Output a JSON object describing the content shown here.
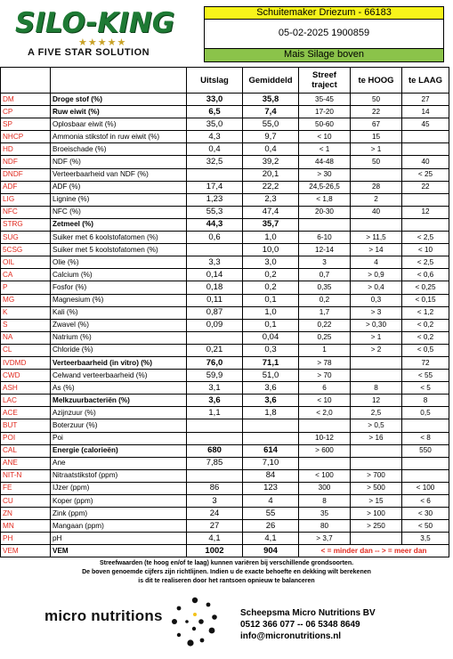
{
  "header": {
    "brand": "SILO-KING",
    "stars": "★★★★★",
    "tagline": "A FIVE STAR SOLUTION",
    "client": "Schuitemaker Driezum - 66183",
    "date_id": "05-02-2025 1900859",
    "sample_type": "Mais Silage boven"
  },
  "columns": [
    "Uitslag",
    "Gemiddeld",
    "Streef traject",
    "te HOOG",
    "te LAAG"
  ],
  "rows": [
    {
      "code": "DM",
      "desc": "Droge stof (%)",
      "bold": true,
      "uitslag": "33,0",
      "gem": "35,8",
      "streef": "35-45",
      "hoog": "50",
      "laag": "27"
    },
    {
      "code": "CP",
      "desc": "Ruw eiwit (%)",
      "bold": true,
      "uitslag": "6,5",
      "gem": "7,4",
      "streef": "17-20",
      "hoog": "22",
      "laag": "14"
    },
    {
      "code": "SP",
      "desc": "Oplosbaar eiwit (%)",
      "bold": false,
      "uitslag": "35,0",
      "gem": "55,0",
      "streef": "50-60",
      "hoog": "67",
      "laag": "45"
    },
    {
      "code": "NHCP",
      "desc": "Ammonia stikstof in ruw eiwit (%)",
      "bold": false,
      "uitslag": "4,3",
      "gem": "9,7",
      "streef": "< 10",
      "hoog": "15",
      "laag": ""
    },
    {
      "code": "HD",
      "desc": "Broeischade (%)",
      "bold": false,
      "uitslag": "0,4",
      "gem": "0,4",
      "streef": "< 1",
      "hoog": "> 1",
      "laag": ""
    },
    {
      "code": "NDF",
      "desc": "NDF (%)",
      "bold": false,
      "uitslag": "32,5",
      "gem": "39,2",
      "streef": "44-48",
      "hoog": "50",
      "laag": "40"
    },
    {
      "code": "DNDF",
      "desc": "Verteerbaarheid van NDF (%)",
      "bold": false,
      "uitslag": "",
      "gem": "20,1",
      "streef": "> 30",
      "hoog": "",
      "laag": "< 25"
    },
    {
      "code": "ADF",
      "desc": "ADF (%)",
      "bold": false,
      "uitslag": "17,4",
      "gem": "22,2",
      "streef": "24,5-26,5",
      "hoog": "28",
      "laag": "22"
    },
    {
      "code": "LIG",
      "desc": "Lignine (%)",
      "bold": false,
      "uitslag": "1,23",
      "gem": "2,3",
      "streef": "< 1,8",
      "hoog": "2",
      "laag": ""
    },
    {
      "code": "NFC",
      "desc": "NFC (%)",
      "bold": false,
      "uitslag": "55,3",
      "gem": "47,4",
      "streef": "20-30",
      "hoog": "40",
      "laag": "12"
    },
    {
      "code": "STRG",
      "desc": "Zetmeel (%)",
      "bold": true,
      "uitslag": "44,3",
      "gem": "35,7",
      "streef": "",
      "hoog": "",
      "laag": ""
    },
    {
      "code": "SUG",
      "desc": "Suiker met 6 koolstofatomen (%)",
      "bold": false,
      "uitslag": "0,6",
      "gem": "1,0",
      "streef": "6-10",
      "hoog": "> 11,5",
      "laag": "< 2,5"
    },
    {
      "code": "5CSG",
      "desc": "Suiker met 5 koolstofatomen (%)",
      "bold": false,
      "uitslag": "",
      "gem": "10,0",
      "streef": "12-14",
      "hoog": "> 14",
      "laag": "< 10"
    },
    {
      "code": "OIL",
      "desc": "Olie (%)",
      "bold": false,
      "uitslag": "3,3",
      "gem": "3,0",
      "streef": "3",
      "hoog": "4",
      "laag": "< 2,5"
    },
    {
      "code": "CA",
      "desc": "Calcium (%)",
      "bold": false,
      "uitslag": "0,14",
      "gem": "0,2",
      "streef": "0,7",
      "hoog": "> 0,9",
      "laag": "< 0,6"
    },
    {
      "code": "P",
      "desc": "Fosfor (%)",
      "bold": false,
      "uitslag": "0,18",
      "gem": "0,2",
      "streef": "0,35",
      "hoog": "> 0,4",
      "laag": "< 0,25"
    },
    {
      "code": "MG",
      "desc": "Magnesium (%)",
      "bold": false,
      "uitslag": "0,11",
      "gem": "0,1",
      "streef": "0,2",
      "hoog": "0,3",
      "laag": "< 0,15"
    },
    {
      "code": "K",
      "desc": "Kali (%)",
      "bold": false,
      "uitslag": "0,87",
      "gem": "1,0",
      "streef": "1,7",
      "hoog": "> 3",
      "laag": "< 1,2"
    },
    {
      "code": "S",
      "desc": "Zwavel (%)",
      "bold": false,
      "uitslag": "0,09",
      "gem": "0,1",
      "streef": "0,22",
      "hoog": "> 0,30",
      "laag": "< 0,2"
    },
    {
      "code": "NA",
      "desc": "Natrium (%)",
      "bold": false,
      "uitslag": "",
      "gem": "0,04",
      "streef": "0,25",
      "hoog": "> 1",
      "laag": "< 0,2"
    },
    {
      "code": "CL",
      "desc": "Chloride (%)",
      "bold": false,
      "uitslag": "0,21",
      "gem": "0,3",
      "streef": "1",
      "hoog": "> 2",
      "laag": "< 0,5"
    },
    {
      "code": "IVDMD",
      "desc": "Verteerbaarheid (in vitro) (%)",
      "bold": true,
      "uitslag": "76,0",
      "gem": "71,1",
      "streef": "> 78",
      "hoog": "",
      "laag": "72"
    },
    {
      "code": "CWD",
      "desc": "Celwand verteerbaarheid (%)",
      "bold": false,
      "uitslag": "59,9",
      "gem": "51,0",
      "streef": "> 70",
      "hoog": "",
      "laag": "< 55"
    },
    {
      "code": "ASH",
      "desc": "As (%)",
      "bold": false,
      "uitslag": "3,1",
      "gem": "3,6",
      "streef": "6",
      "hoog": "8",
      "laag": "< 5"
    },
    {
      "code": "LAC",
      "desc": "Melkzuurbacteriën (%)",
      "bold": true,
      "uitslag": "3,6",
      "gem": "3,6",
      "streef": "< 10",
      "hoog": "12",
      "laag": "8"
    },
    {
      "code": "ACE",
      "desc": "Azijnzuur (%)",
      "bold": false,
      "uitslag": "1,1",
      "gem": "1,8",
      "streef": "< 2,0",
      "hoog": "2,5",
      "laag": "0,5"
    },
    {
      "code": "BUT",
      "desc": "Boterzuur (%)",
      "bold": false,
      "uitslag": "",
      "gem": "",
      "streef": "",
      "hoog": "> 0,5",
      "laag": ""
    },
    {
      "code": "POI",
      "desc": "Poi",
      "bold": false,
      "uitslag": "",
      "gem": "",
      "streef": "10-12",
      "hoog": "> 16",
      "laag": "< 8"
    },
    {
      "code": "CAL",
      "desc": "Energie (calorieën)",
      "bold": true,
      "uitslag": "680",
      "gem": "614",
      "streef": "> 600",
      "hoog": "",
      "laag": "550"
    },
    {
      "code": "ANE",
      "desc": "Ane",
      "bold": false,
      "uitslag": "7,85",
      "gem": "7,10",
      "streef": "",
      "hoog": "",
      "laag": ""
    },
    {
      "code": "NIT-N",
      "desc": "Nitraatstikstof (ppm)",
      "bold": false,
      "uitslag": "",
      "gem": "84",
      "streef": "< 100",
      "hoog": "> 700",
      "laag": ""
    },
    {
      "code": "FE",
      "desc": "IJzer (ppm)",
      "bold": false,
      "uitslag": "86",
      "gem": "123",
      "streef": "300",
      "hoog": "> 500",
      "laag": "< 100"
    },
    {
      "code": "CU",
      "desc": "Koper (ppm)",
      "bold": false,
      "uitslag": "3",
      "gem": "4",
      "streef": "8",
      "hoog": "> 15",
      "laag": "< 6"
    },
    {
      "code": "ZN",
      "desc": "Zink (ppm)",
      "bold": false,
      "uitslag": "24",
      "gem": "55",
      "streef": "35",
      "hoog": "> 100",
      "laag": "< 30"
    },
    {
      "code": "MN",
      "desc": "Mangaan (ppm)",
      "bold": false,
      "uitslag": "27",
      "gem": "26",
      "streef": "80",
      "hoog": "> 250",
      "laag": "< 50"
    },
    {
      "code": "PH",
      "desc": "pH",
      "bold": false,
      "uitslag": "4,1",
      "gem": "4,1",
      "streef": "> 3,7",
      "hoog": "",
      "laag": "3,5"
    },
    {
      "code": "VEM",
      "desc": "VEM",
      "bold": true,
      "uitslag": "1002",
      "gem": "904",
      "streef": "",
      "hoog": "",
      "laag": ""
    }
  ],
  "legend_note": "< = minder dan -- > = meer dan",
  "footnote": {
    "line1": "Streefwaarden (te hoog en/of te laag) kunnen variëren bij verschillende grondsoorten.",
    "line2": "De boven genoemde cijfers zijn richtlijnen. Indien u de exacte behoefte en dekking wilt berekenen",
    "line3": "is dit te realiseren door het rantsoen opnieuw te balanceren"
  },
  "footer": {
    "logo_text": "micro nutritions",
    "company": "Scheepsma Micro Nutritions BV",
    "phones": "0512 366 077  --  06 5348 8649",
    "email": "info@micronutritions.nl"
  },
  "colors": {
    "accent_yellow": "#f7f41a",
    "accent_green": "#8bc34a",
    "brand_green": "#1e7a34",
    "code_red": "#e0291e"
  }
}
